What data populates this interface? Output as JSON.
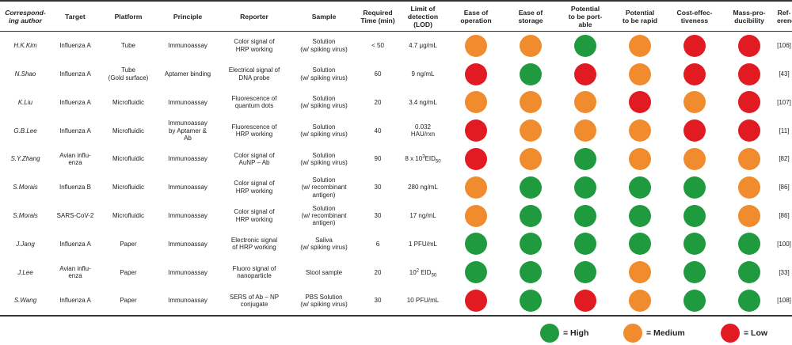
{
  "columns": [
    "Correspond-\ning author",
    "Target",
    "Platform",
    "Principle",
    "Reporter",
    "Sample",
    "Required\nTime (min)",
    "Limit of\ndetection\n(LOD)",
    "Ease of\noperation",
    "Ease of\nstorage",
    "Potential\nto be port-\nable",
    "Potential\nto be rapid",
    "Cost-effec-\ntiveness",
    "Mass-pro-\nducibility",
    "Ref-\nerences"
  ],
  "rows": [
    {
      "author": "H.K.Kim",
      "target": "Influenza A",
      "platform": "Tube",
      "principle": "Immunoassay",
      "reporter": "Color signal of\nHRP working",
      "sample": "Solution\n(w/ spiking virus)",
      "time": "< 50",
      "lod": "4.7 μg/mL",
      "ratings": [
        "medium",
        "medium",
        "high",
        "medium",
        "low",
        "low"
      ],
      "ref": "[106]"
    },
    {
      "author": "N.Shao",
      "target": "Influenza A",
      "platform": "Tube\n(Gold surface)",
      "principle": "Aptamer binding",
      "reporter": "Electrical signal of\nDNA probe",
      "sample": "Solution\n(w/ spiking virus)",
      "time": "60",
      "lod": "9 ng/mL",
      "ratings": [
        "low",
        "high",
        "low",
        "medium",
        "low",
        "low"
      ],
      "ref": "[43]"
    },
    {
      "author": "K.Liu",
      "target": "Influenza A",
      "platform": "Microfluidic",
      "principle": "Immunoassay",
      "reporter": "Fluorescence of\nquantum dots",
      "sample": "Solution\n(w/ spiking virus)",
      "time": "20",
      "lod": "3.4 ng/mL",
      "ratings": [
        "medium",
        "medium",
        "medium",
        "low",
        "medium",
        "low"
      ],
      "ref": "[107]"
    },
    {
      "author": "G.B.Lee",
      "target": "Influenza A",
      "platform": "Microfluidic",
      "principle": "Immunoassay\nby Aptamer &\nAb",
      "reporter": "Fluorescence of\nHRP working",
      "sample": "Solution\n(w/ spiking virus)",
      "time": "40",
      "lod": "0.032\nHAU/rxn",
      "ratings": [
        "low",
        "medium",
        "medium",
        "medium",
        "low",
        "low"
      ],
      "ref": "[11]"
    },
    {
      "author": "S.Y.Zhang",
      "target": "Avian influ-\nenza",
      "platform": "Microfluidic",
      "principle": "Immunoassay",
      "reporter": "Color signal of\nAuNP – Ab",
      "sample": "Solution\n(w/ spiking virus)",
      "time": "90",
      "lod_base": "8 x 10",
      "lod_sup": "3",
      "lod_unit": "EID",
      "lod_sub": "50",
      "ratings": [
        "low",
        "medium",
        "high",
        "medium",
        "medium",
        "medium"
      ],
      "ref": "[82]"
    },
    {
      "author": "S.Morais",
      "target": "Influenza B",
      "platform": "Microfluidic",
      "principle": "Immunoassay",
      "reporter": "Color signal of\nHRP working",
      "sample": "Solution\n(w/ recombinant\nantigen)",
      "time": "30",
      "lod": "280 ng/mL",
      "ratings": [
        "medium",
        "high",
        "high",
        "high",
        "high",
        "medium"
      ],
      "ref": "[86]"
    },
    {
      "author": "S.Morais",
      "target": "SARS-CoV-2",
      "platform": "Microfluidic",
      "principle": "Immunoassay",
      "reporter": "Color signal of\nHRP working",
      "sample": "Solution\n(w/ recombinant\nantigen)",
      "time": "30",
      "lod": "17 ng/mL",
      "ratings": [
        "medium",
        "high",
        "high",
        "high",
        "high",
        "medium"
      ],
      "ref": "[86]"
    },
    {
      "author": "J.Jang",
      "target": "Influenza A",
      "platform": "Paper",
      "principle": "Immunoassay",
      "reporter": "Electronic signal\nof HRP working",
      "sample": "Saliva\n(w/ spiking virus)",
      "time": "6",
      "lod": "1 PFU/mL",
      "ratings": [
        "high",
        "high",
        "high",
        "high",
        "high",
        "high"
      ],
      "ref": "[100]"
    },
    {
      "author": "J.Lee",
      "target": "Avian influ-\nenza",
      "platform": "Paper",
      "principle": "Immunoassay",
      "reporter": "Fluoro signal of\nnanoparticle",
      "sample": "Stool sample",
      "time": "20",
      "lod_base": "10",
      "lod_sup": "2",
      "lod_unit": " EID",
      "lod_sub": "50",
      "ratings": [
        "high",
        "high",
        "high",
        "medium",
        "high",
        "high"
      ],
      "ref": "[33]"
    },
    {
      "author": "S.Wang",
      "target": "Influenza A",
      "platform": "Paper",
      "principle": "Immunoassay",
      "reporter": "SERS of Ab – NP\nconjugate",
      "sample": "PBS Solution\n(w/ spiking virus)",
      "time": "30",
      "lod": "10 PFU/mL",
      "ratings": [
        "low",
        "high",
        "low",
        "medium",
        "high",
        "high"
      ],
      "ref": "[108]"
    }
  ],
  "legend": [
    {
      "level": "high",
      "label": "= High"
    },
    {
      "level": "medium",
      "label": "= Medium"
    },
    {
      "level": "low",
      "label": "= Low"
    }
  ],
  "colors": {
    "high": "#1f9a3e",
    "medium": "#f08c2e",
    "low": "#e21a22"
  }
}
